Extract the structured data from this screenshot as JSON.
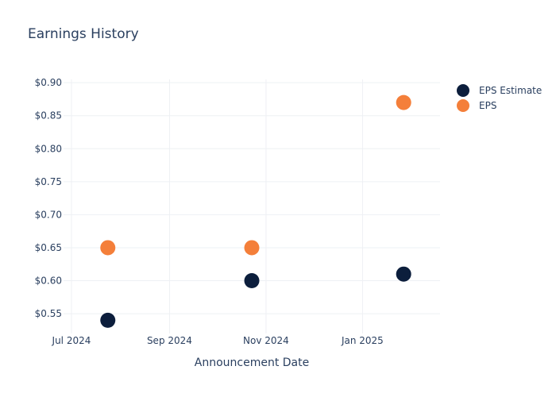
{
  "chart_data": {
    "type": "scatter",
    "title": "Earnings History",
    "xlabel": "Announcement Date",
    "ylabel": "",
    "x_ticks": [
      "Jul 2024",
      "Sep 2024",
      "Nov 2024",
      "Jan 2025"
    ],
    "x_tick_dates": [
      "2024-07-01",
      "2024-09-01",
      "2024-11-01",
      "2025-01-01"
    ],
    "xlim": [
      "2024-06-26",
      "2025-02-19"
    ],
    "y_ticks": [
      "$0.55",
      "$0.60",
      "$0.65",
      "$0.70",
      "$0.75",
      "$0.80",
      "$0.85",
      "$0.90"
    ],
    "y_tick_values": [
      0.55,
      0.6,
      0.65,
      0.7,
      0.75,
      0.8,
      0.85,
      0.9
    ],
    "ylim": [
      0.52,
      0.905
    ],
    "grid": true,
    "legend_position": "top-right",
    "series": [
      {
        "name": "EPS Estimate",
        "color": "#0c1e3c",
        "points": [
          {
            "x": "2024-07-24",
            "y": 0.54
          },
          {
            "x": "2024-10-23",
            "y": 0.6
          },
          {
            "x": "2025-01-27",
            "y": 0.61
          }
        ]
      },
      {
        "name": "EPS",
        "color": "#f47f3a",
        "points": [
          {
            "x": "2024-07-24",
            "y": 0.65
          },
          {
            "x": "2024-10-23",
            "y": 0.65
          },
          {
            "x": "2025-01-27",
            "y": 0.87
          }
        ]
      }
    ]
  }
}
